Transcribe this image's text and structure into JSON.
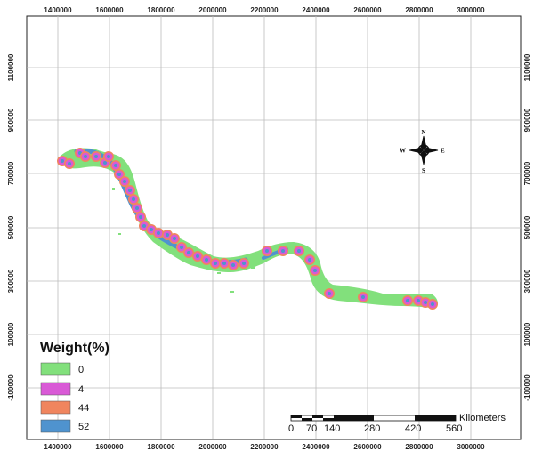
{
  "map": {
    "x_ticks": [
      "1400000",
      "1600000",
      "1800000",
      "2000000",
      "2200000",
      "2400000",
      "2600000",
      "2800000",
      "3000000"
    ],
    "y_ticks": [
      "1100000",
      "900000",
      "700000",
      "500000",
      "300000",
      "100000",
      "-100000"
    ],
    "legend": {
      "title": "Weight(%)",
      "items": [
        {
          "label": "0",
          "color": "#82e07c"
        },
        {
          "label": "4",
          "color": "#d95ad6"
        },
        {
          "label": "44",
          "color": "#f0855e"
        },
        {
          "label": "52",
          "color": "#4f93cf"
        }
      ]
    },
    "scalebar": {
      "unit": "Kilometers",
      "labels": [
        "0",
        "70",
        "140",
        "280",
        "420",
        "560"
      ]
    },
    "north_arrow": {
      "n": "N",
      "s": "S",
      "e": "E",
      "w": "W"
    }
  }
}
